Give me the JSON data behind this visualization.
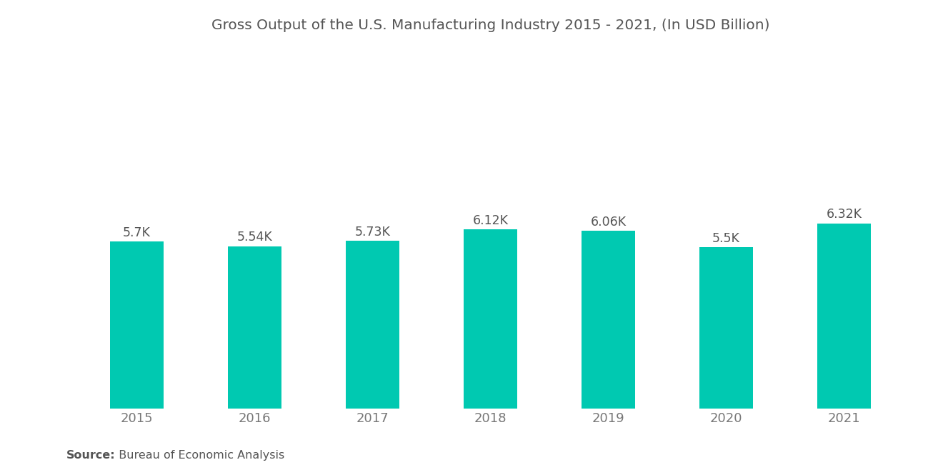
{
  "title": "Gross Output of the U.S. Manufacturing Industry 2015 - 2021, (In USD Billion)",
  "categories": [
    "2015",
    "2016",
    "2017",
    "2018",
    "2019",
    "2020",
    "2021"
  ],
  "values": [
    5700,
    5540,
    5730,
    6120,
    6060,
    5500,
    6320
  ],
  "labels": [
    "5.7K",
    "5.54K",
    "5.73K",
    "6.12K",
    "6.06K",
    "5.5K",
    "6.32K"
  ],
  "bar_color": "#00C9B1",
  "background_color": "#ffffff",
  "title_color": "#555555",
  "label_color": "#555555",
  "tick_color": "#777777",
  "source_bold": "Source:",
  "source_rest": "  Bureau of Economic Analysis",
  "ylim_min": 0,
  "ylim_max": 12000,
  "title_fontsize": 14.5,
  "label_fontsize": 12.5,
  "tick_fontsize": 13,
  "source_fontsize": 11.5,
  "bar_width": 0.45
}
